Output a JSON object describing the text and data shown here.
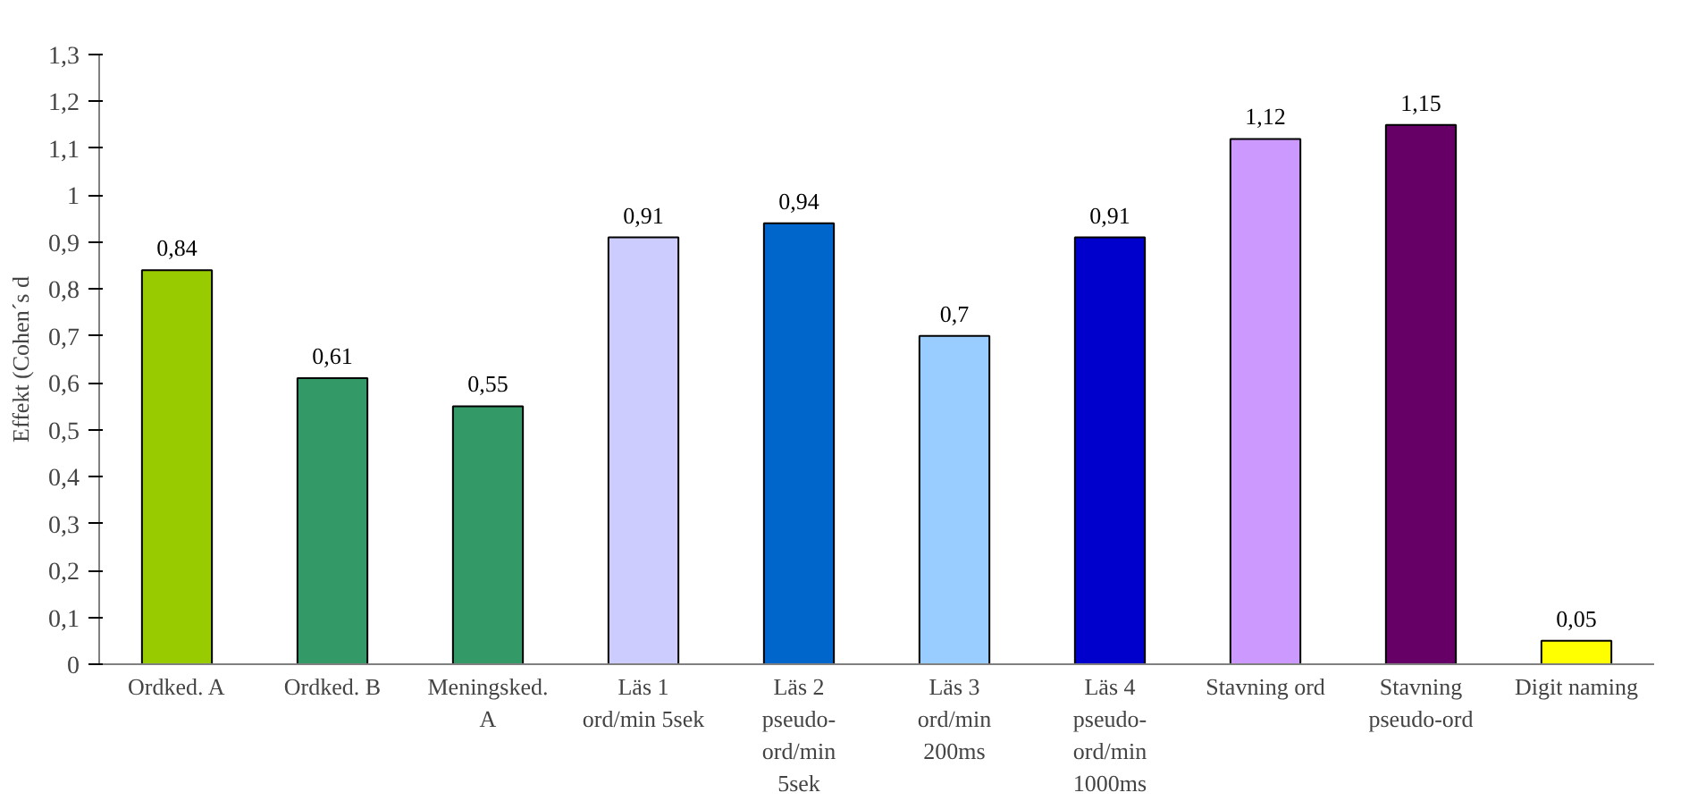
{
  "chart_data": {
    "type": "bar",
    "ylabel": "Effekt (Cohen´s d",
    "categories": [
      "Ordked. A",
      "Ordked. B",
      "Meningsked.\nA",
      "Läs 1\nord/min 5sek",
      "Läs 2\npseudo-\nord/min\n5sek",
      "Läs 3\nord/min\n200ms",
      "Läs 4\npseudo-\nord/min\n1000ms",
      "Stavning ord",
      "Stavning\npseudo-ord",
      "Digit naming"
    ],
    "values": [
      0.84,
      0.61,
      0.55,
      0.91,
      0.94,
      0.7,
      0.91,
      1.12,
      1.15,
      0.05
    ],
    "value_labels": [
      "0,84",
      "0,61",
      "0,55",
      "0,91",
      "0,94",
      "0,7",
      "0,91",
      "1,12",
      "1,15",
      "0,05"
    ],
    "colors": [
      "#99cc00",
      "#339966",
      "#339966",
      "#ccccff",
      "#0066cc",
      "#99ccff",
      "#0000cc",
      "#cc99ff",
      "#660066",
      "#ffff00"
    ],
    "ylim": [
      0,
      1.3
    ],
    "yticks": [
      0,
      {
        "value": 0.1,
        "label": "0,1"
      },
      {
        "value": 0.2,
        "label": "0,2"
      },
      {
        "value": 0.3,
        "label": "0,3"
      },
      {
        "value": 0.4,
        "label": "0,4"
      },
      {
        "value": 0.5,
        "label": "0,5"
      },
      {
        "value": 0.6,
        "label": "0,6"
      },
      {
        "value": 0.7,
        "label": "0,7"
      },
      {
        "value": 0.8,
        "label": "0,8"
      },
      {
        "value": 0.9,
        "label": "0,9"
      },
      1,
      {
        "value": 1.1,
        "label": "1,1"
      },
      {
        "value": 1.2,
        "label": "1,2"
      },
      {
        "value": 1.3,
        "label": "1,3"
      }
    ],
    "grid": false
  }
}
